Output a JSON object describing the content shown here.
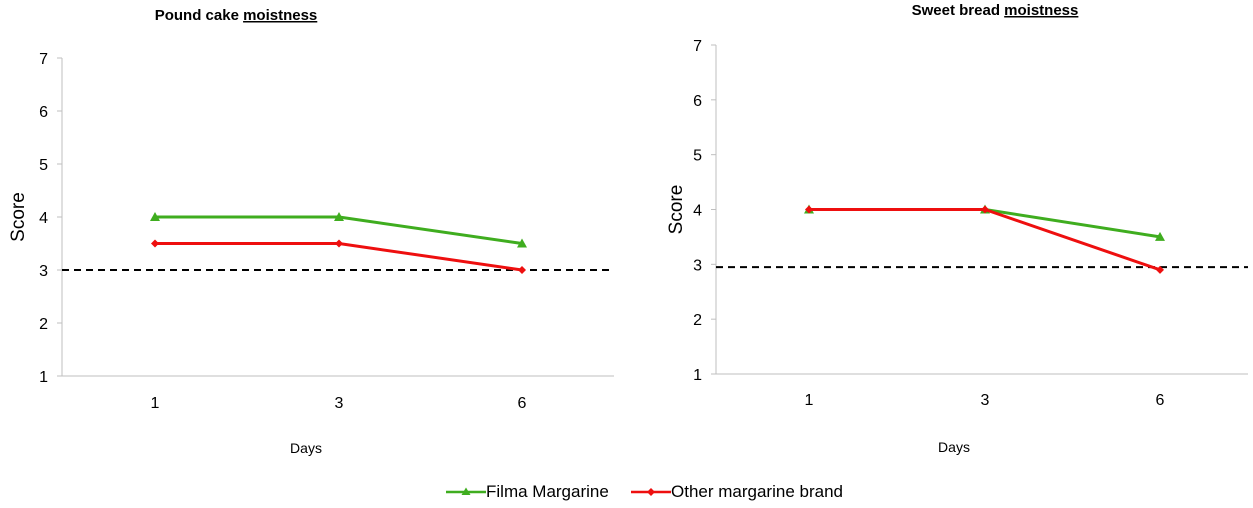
{
  "chart_data": [
    {
      "type": "line",
      "title_main": "Pound cake ",
      "title_emph": "moistness",
      "categories": [
        "1",
        "3",
        "6"
      ],
      "xlabel": "Days",
      "ylabel": "Score",
      "ylim": [
        1,
        7
      ],
      "yticks": [
        "1",
        "2",
        "3",
        "4",
        "5",
        "6",
        "7"
      ],
      "reference_line": 3,
      "series": [
        {
          "name": "Filma Margarine",
          "values": [
            4,
            4,
            3.5
          ]
        },
        {
          "name": "Other margarine brand",
          "values": [
            3.5,
            3.5,
            3
          ]
        }
      ]
    },
    {
      "type": "line",
      "title_main": "Sweet bread ",
      "title_emph": "moistness",
      "categories": [
        "1",
        "3",
        "6"
      ],
      "xlabel": "Days",
      "ylabel": "Score",
      "ylim": [
        1,
        7
      ],
      "yticks": [
        "1",
        "2",
        "3",
        "4",
        "5",
        "6",
        "7"
      ],
      "reference_line": 2.95,
      "series": [
        {
          "name": "Filma Margarine",
          "values": [
            4,
            4,
            3.5
          ]
        },
        {
          "name": "Other margarine brand",
          "values": [
            4,
            4,
            2.9
          ]
        }
      ]
    }
  ],
  "legend": {
    "items": [
      {
        "name": "Filma Margarine",
        "color": "#3fad1f",
        "marker": "triangle"
      },
      {
        "name": "Other margarine brand",
        "color": "#ee0f0f",
        "marker": "diamond"
      }
    ]
  },
  "colors": {
    "series": [
      "#3fad1f",
      "#ee0f0f"
    ],
    "axis": "#bfbfbf",
    "reference": "#000000"
  }
}
